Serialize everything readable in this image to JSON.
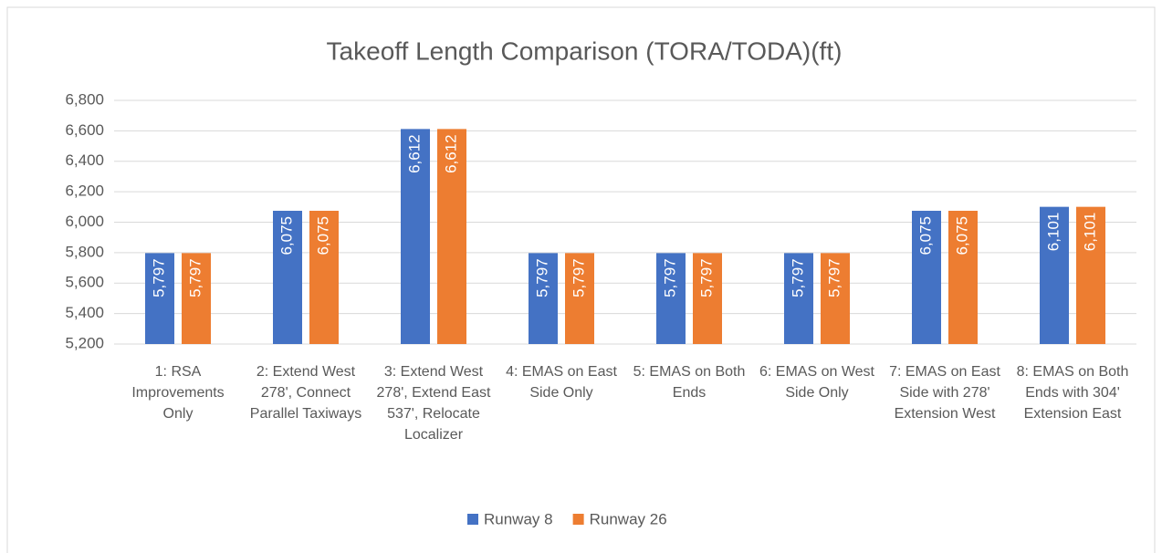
{
  "chart_data": {
    "type": "bar",
    "title": "Takeoff Length Comparison (TORA/TODA)(ft)",
    "categories": [
      "1: RSA Improvements Only",
      "2: Extend West 278', Connect Parallel Taxiways",
      "3: Extend West 278', Extend East 537', Relocate Localizer",
      "4: EMAS on East Side Only",
      "5: EMAS on Both Ends",
      "6: EMAS on West Side Only",
      "7: EMAS on East Side with 278' Extension West",
      "8: EMAS on Both Ends with 304' Extension East"
    ],
    "series": [
      {
        "name": "Runway 8",
        "color": "#4472c4",
        "values": [
          5797,
          6075,
          6612,
          5797,
          5797,
          5797,
          6075,
          6101
        ],
        "value_labels": [
          "5,797",
          "6,075",
          "6,612",
          "5,797",
          "5,797",
          "5,797",
          "6,075",
          "6,101"
        ]
      },
      {
        "name": "Runway 26",
        "color": "#ed7d31",
        "values": [
          5797,
          6075,
          6612,
          5797,
          5797,
          5797,
          6075,
          6101
        ],
        "value_labels": [
          "5,797",
          "6,075",
          "6,612",
          "5,797",
          "5,797",
          "5,797",
          "6,075",
          "6,101"
        ]
      }
    ],
    "ylim": [
      5200,
      6800
    ],
    "yticks": [
      {
        "value": 5200,
        "label": "5,200"
      },
      {
        "value": 5400,
        "label": "5,400"
      },
      {
        "value": 5600,
        "label": "5,600"
      },
      {
        "value": 5800,
        "label": "5,800"
      },
      {
        "value": 6000,
        "label": "6,000"
      },
      {
        "value": 6200,
        "label": "6,200"
      },
      {
        "value": 6400,
        "label": "6,400"
      },
      {
        "value": 6600,
        "label": "6,600"
      },
      {
        "value": 6800,
        "label": "6,800"
      }
    ],
    "grid": true,
    "legend": "bottom"
  }
}
